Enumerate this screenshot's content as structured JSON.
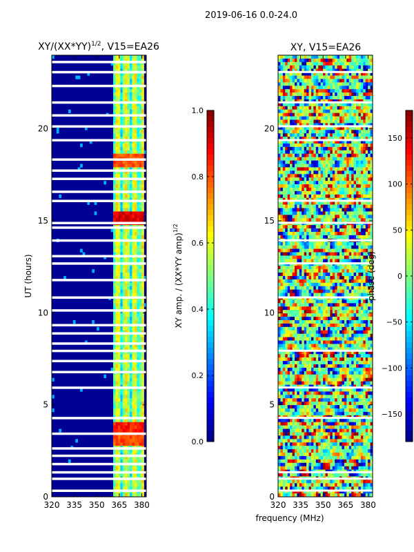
{
  "figure_title": "2019-06-16 0.0-24.0",
  "chart_data": [
    {
      "type": "heatmap",
      "title": "XY/(XX*YY)^{1/2}, V15=EA26",
      "title_main": "XY/(XX*YY)",
      "title_exponent": "1/2",
      "title_suffix": ", V15=EA26",
      "xlabel": "",
      "ylabel": "UT (hours)",
      "xlim": [
        320,
        383
      ],
      "ylim": [
        0,
        24
      ],
      "xticks": [
        320,
        335,
        350,
        365,
        380
      ],
      "yticks": [
        0,
        5,
        10,
        15,
        20
      ],
      "colorbar": {
        "label": "XY amp. / (XX*YY amp)^{1/2}",
        "label_main": "XY amp. / (XX*YY amp)",
        "label_exponent": "1/2",
        "range": [
          0.0,
          1.0
        ],
        "ticks": [
          "0.0",
          "0.2",
          "0.4",
          "0.6",
          "0.8",
          "1.0"
        ]
      },
      "colormap": "jet",
      "flagged_rows_ut": [
        0.3,
        0.95,
        1.3,
        1.75,
        2.2,
        2.6,
        3.4,
        4.25,
        5.9,
        6.75,
        7.35,
        7.9,
        8.3,
        8.85,
        9.3,
        10.1,
        10.8,
        11.75,
        12.65,
        13.05,
        13.9,
        14.6,
        14.85,
        16.05,
        16.55,
        17.25,
        17.7,
        18.3,
        19.35,
        20.1,
        20.7,
        21.4,
        22.3,
        23.05,
        23.6
      ],
      "bright_blocks": [
        {
          "ut": 15.1,
          "value": 0.95
        },
        {
          "ut": 18.3,
          "value": 0.85
        },
        {
          "ut": 3.8,
          "value": 0.9
        },
        {
          "ut": 3.1,
          "value": 0.85
        }
      ]
    },
    {
      "type": "heatmap",
      "title": "XY, V15=EA26",
      "xlabel": "frequency (MHz)",
      "ylabel": "",
      "xlim": [
        320,
        383
      ],
      "ylim": [
        0,
        24
      ],
      "xticks": [
        320,
        335,
        350,
        365,
        380
      ],
      "yticks": [
        0,
        5,
        10,
        15,
        20
      ],
      "colorbar": {
        "label": "phase (deg)",
        "range": [
          -180,
          180
        ],
        "ticks": [
          "−150",
          "−100",
          "−50",
          "0",
          "50",
          "100",
          "150"
        ]
      },
      "colormap": "jet",
      "flagged_rows_ut": [
        0.3,
        0.95,
        1.3,
        4.25,
        5.9,
        7.9,
        10.8,
        12.65,
        13.9,
        14.85,
        16.05,
        19.35,
        20.1,
        21.4,
        23.05
      ]
    }
  ]
}
